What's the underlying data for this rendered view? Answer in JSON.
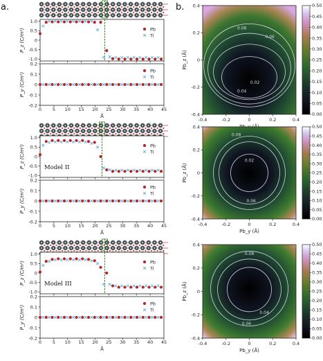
{
  "panel_labels": {
    "a": "a.",
    "b": "b."
  },
  "models": [
    {
      "name": "",
      "divider_x": 23.5
    },
    {
      "name": "Model II",
      "divider_x": 22.5
    },
    {
      "name": "Model III",
      "divider_x": 23.5
    }
  ],
  "legend": {
    "pb": "Pb",
    "ti": "Ti"
  },
  "colors": {
    "pb": "#b3262a",
    "ti": "#4aa3d8",
    "divider": "#2e7d1f",
    "contour": "#e6e6f0"
  },
  "left_axes": {
    "xlabel": "Å",
    "xticks": [
      "0",
      "5",
      "10",
      "15",
      "20",
      "25",
      "30",
      "35",
      "40",
      "45"
    ],
    "pz_label": "P_z (C/m²)",
    "pz_ticks": [
      "1.0",
      "0.5",
      "0",
      "-0.5",
      "-1.0"
    ],
    "py_label": "P_y (C/m²)",
    "py_ticks": [
      "0.2",
      "0.1",
      "0",
      "-0.1",
      "-0.2"
    ]
  },
  "right_axes": {
    "xlabel": "Pb_y (Å)",
    "ylabel": "Pb_z (Å)",
    "xticks": [
      "-0.4",
      "-0.2",
      "0",
      "0.2",
      "0.4"
    ],
    "yticks": [
      "0.4",
      "0.2",
      "0",
      "-0.2",
      "-0.4"
    ],
    "colorbar_ticks": [
      "0.50",
      "0.45",
      "0.40",
      "0.35",
      "0.30",
      "0.25",
      "0.20",
      "0.15",
      "0.10",
      "0.05",
      "0.00"
    ]
  },
  "chart_data": [
    {
      "type": "scatter",
      "title": "",
      "xlabel": "Å",
      "ylabel": "P_z (C/m²)",
      "xlim": [
        0,
        45
      ],
      "ylim": [
        -1.1,
        1.1
      ],
      "series": [
        {
          "name": "Pb",
          "x": [
            0,
            2.2,
            4.4,
            6.6,
            8.8,
            11.0,
            13.2,
            15.4,
            17.6,
            19.8,
            22.0,
            24.2,
            26.4,
            28.6,
            30.8,
            33.0,
            35.2,
            37.4,
            39.6,
            41.8,
            44.0
          ],
          "values": [
            0.35,
            0.95,
            0.97,
            0.97,
            0.97,
            0.97,
            0.97,
            0.97,
            0.97,
            0.95,
            0.95,
            -0.55,
            -0.98,
            -1.0,
            -1.0,
            -1.0,
            -1.0,
            -1.0,
            -1.0,
            -1.0,
            -1.0
          ]
        },
        {
          "name": "Ti",
          "x": [
            1.1,
            3.3,
            5.5,
            7.7,
            9.9,
            12.1,
            14.3,
            16.5,
            18.7,
            20.9,
            23.1,
            25.3,
            27.5,
            29.7,
            31.9,
            34.1,
            36.3,
            38.5,
            40.7,
            42.9
          ],
          "values": [
            0.75,
            1.0,
            1.0,
            1.0,
            1.0,
            1.0,
            1.0,
            1.0,
            1.0,
            0.55,
            -0.9,
            -0.88,
            -0.92,
            -0.92,
            -0.92,
            -0.92,
            -0.92,
            -0.92,
            -0.92,
            -0.92
          ]
        }
      ]
    },
    {
      "type": "scatter",
      "title": "",
      "xlabel": "Å",
      "ylabel": "P_y (C/m²)",
      "xlim": [
        0,
        45
      ],
      "ylim": [
        -0.2,
        0.2
      ],
      "series": [
        {
          "name": "Pb",
          "x": [
            0,
            2.2,
            4.4,
            6.6,
            8.8,
            11.0,
            13.2,
            15.4,
            17.6,
            19.8,
            22.0,
            24.2,
            26.4,
            28.6,
            30.8,
            33.0,
            35.2,
            37.4,
            39.6,
            41.8,
            44.0
          ],
          "values": [
            0,
            0,
            0,
            0,
            0,
            0,
            0,
            0,
            0,
            0,
            0,
            0,
            0,
            0,
            0,
            0,
            0,
            0,
            0,
            0,
            0
          ]
        },
        {
          "name": "Ti",
          "x": [
            1.1,
            3.3,
            5.5,
            7.7,
            9.9,
            12.1,
            14.3,
            16.5,
            18.7,
            20.9,
            23.1,
            25.3,
            27.5,
            29.7,
            31.9,
            34.1,
            36.3,
            38.5,
            40.7,
            42.9
          ],
          "values": [
            0,
            0,
            0,
            0,
            0,
            0,
            0,
            0,
            0,
            0,
            0,
            0,
            0,
            0,
            0,
            0,
            0,
            0,
            0,
            0
          ]
        }
      ]
    },
    {
      "type": "scatter",
      "title": "",
      "xlabel": "Å",
      "ylabel": "P_z (C/m²)",
      "xlim": [
        0,
        45
      ],
      "ylim": [
        -1.1,
        1.1
      ],
      "series": [
        {
          "name": "Pb",
          "x": [
            0,
            2.2,
            4.4,
            6.6,
            8.8,
            11.0,
            13.2,
            15.4,
            17.6,
            19.8,
            22.0,
            24.2,
            26.4,
            28.6,
            30.8,
            33.0,
            35.2,
            37.4,
            39.6,
            41.8,
            44.0
          ],
          "values": [
            0.1,
            0.8,
            0.85,
            0.85,
            0.85,
            0.85,
            0.85,
            0.85,
            0.8,
            0.75,
            0.0,
            -0.7,
            -0.78,
            -0.78,
            -0.78,
            -0.78,
            -0.78,
            -0.78,
            -0.78,
            -0.78,
            -0.78
          ]
        },
        {
          "name": "Ti",
          "x": [
            1.1,
            3.3,
            5.5,
            7.7,
            9.9,
            12.1,
            14.3,
            16.5,
            18.7,
            20.9,
            23.1,
            25.3,
            27.5,
            29.7,
            31.9,
            34.1,
            36.3,
            38.5,
            40.7,
            42.9
          ],
          "values": [
            0.6,
            0.75,
            0.78,
            0.78,
            0.78,
            0.78,
            0.78,
            0.78,
            0.7,
            0.5,
            -0.6,
            -0.7,
            -0.72,
            -0.72,
            -0.72,
            -0.72,
            -0.72,
            -0.72,
            -0.72,
            -0.72
          ]
        }
      ]
    },
    {
      "type": "scatter",
      "title": "",
      "xlabel": "Å",
      "ylabel": "P_y (C/m²)",
      "xlim": [
        0,
        45
      ],
      "ylim": [
        -0.2,
        0.2
      ],
      "series": [
        {
          "name": "Pb",
          "x": [
            0,
            2.2,
            4.4,
            6.6,
            8.8,
            11.0,
            13.2,
            15.4,
            17.6,
            19.8,
            22.0,
            24.2,
            26.4,
            28.6,
            30.8,
            33.0,
            35.2,
            37.4,
            39.6,
            41.8,
            44.0
          ],
          "values": [
            0,
            0,
            0,
            0,
            0,
            0,
            0,
            0,
            0,
            0,
            0,
            0,
            0,
            0,
            0,
            0,
            0,
            0,
            0,
            0,
            0
          ]
        },
        {
          "name": "Ti",
          "x": [
            1.1,
            3.3,
            5.5,
            7.7,
            9.9,
            12.1,
            14.3,
            16.5,
            18.7,
            20.9,
            23.1,
            25.3,
            27.5,
            29.7,
            31.9,
            34.1,
            36.3,
            38.5,
            40.7,
            42.9
          ],
          "values": [
            0,
            0,
            0,
            0,
            0,
            0,
            0,
            0,
            0,
            0,
            0,
            0,
            0,
            0,
            0,
            0,
            0,
            0,
            0,
            0
          ]
        }
      ]
    },
    {
      "type": "scatter",
      "title": "",
      "xlabel": "Å",
      "ylabel": "P_z (C/m²)",
      "xlim": [
        0,
        45
      ],
      "ylim": [
        -1.1,
        1.1
      ],
      "series": [
        {
          "name": "Pb",
          "x": [
            0,
            2.2,
            4.4,
            6.6,
            8.8,
            11.0,
            13.2,
            15.4,
            17.6,
            19.8,
            22.0,
            24.2,
            26.4,
            28.6,
            30.8,
            33.0,
            35.2,
            37.4,
            39.6,
            41.8,
            44.0
          ],
          "values": [
            0.05,
            0.62,
            0.72,
            0.75,
            0.75,
            0.75,
            0.75,
            0.75,
            0.72,
            0.65,
            0.3,
            0.0,
            -0.68,
            -0.75,
            -0.75,
            -0.75,
            -0.75,
            -0.75,
            -0.75,
            -0.75,
            -0.75
          ]
        },
        {
          "name": "Ti",
          "x": [
            1.1,
            3.3,
            5.5,
            7.7,
            9.9,
            12.1,
            14.3,
            16.5,
            18.7,
            20.9,
            23.1,
            25.3,
            27.5,
            29.7,
            31.9,
            34.1,
            36.3,
            38.5,
            40.7,
            42.9
          ],
          "values": [
            0.4,
            0.62,
            0.7,
            0.7,
            0.7,
            0.7,
            0.7,
            0.7,
            0.65,
            0.5,
            -0.6,
            -0.6,
            -0.68,
            -0.68,
            -0.68,
            -0.68,
            -0.68,
            -0.68,
            -0.68,
            -0.68
          ]
        }
      ]
    },
    {
      "type": "scatter",
      "title": "",
      "xlabel": "Å",
      "ylabel": "P_y (C/m²)",
      "xlim": [
        0,
        45
      ],
      "ylim": [
        -0.2,
        0.2
      ],
      "series": [
        {
          "name": "Pb",
          "x": [
            0,
            2.2,
            4.4,
            6.6,
            8.8,
            11.0,
            13.2,
            15.4,
            17.6,
            19.8,
            22.0,
            24.2,
            26.4,
            28.6,
            30.8,
            33.0,
            35.2,
            37.4,
            39.6,
            41.8,
            44.0
          ],
          "values": [
            0,
            0,
            0,
            0,
            0,
            0,
            0,
            0,
            0,
            0,
            0,
            0,
            0,
            0,
            0,
            0,
            0,
            0,
            0,
            0,
            0
          ]
        },
        {
          "name": "Ti",
          "x": [
            1.1,
            3.3,
            5.5,
            7.7,
            9.9,
            12.1,
            14.3,
            16.5,
            18.7,
            20.9,
            23.1,
            25.3,
            27.5,
            29.7,
            31.9,
            34.1,
            36.3,
            38.5,
            40.7,
            42.9
          ],
          "values": [
            0,
            0,
            0,
            0,
            0,
            0,
            0,
            0,
            0,
            0,
            0,
            0,
            0,
            0,
            0,
            0,
            0,
            0,
            0,
            0
          ]
        }
      ]
    },
    {
      "type": "heatmap",
      "title": "",
      "xlabel": "Pb_y (Å)",
      "ylabel": "Pb_z (Å)",
      "xlim": [
        -0.4,
        0.4
      ],
      "ylim": [
        -0.4,
        0.4
      ],
      "colorbar_range": [
        0,
        0.5
      ],
      "minimum": [
        0,
        -0.15
      ],
      "contour_levels": [
        "0.02",
        "0.04",
        "0.06",
        "0.08"
      ]
    },
    {
      "type": "heatmap",
      "title": "",
      "xlabel": "Pb_y (Å)",
      "ylabel": "Pb_z (Å)",
      "xlim": [
        -0.4,
        0.4
      ],
      "ylim": [
        -0.4,
        0.4
      ],
      "colorbar_range": [
        0,
        0.5
      ],
      "minimum": [
        0,
        0
      ],
      "contour_levels": [
        "0.02",
        "0.06",
        "0.08"
      ]
    },
    {
      "type": "heatmap",
      "title": "",
      "xlabel": "Pb_y (Å)",
      "ylabel": "Pb_z (Å)",
      "xlim": [
        -0.4,
        0.4
      ],
      "ylim": [
        -0.4,
        0.4
      ],
      "colorbar_range": [
        0,
        0.5
      ],
      "minimum": [
        0,
        0.03
      ],
      "contour_levels": [
        "0.04",
        "0.06",
        "0.08"
      ]
    }
  ]
}
